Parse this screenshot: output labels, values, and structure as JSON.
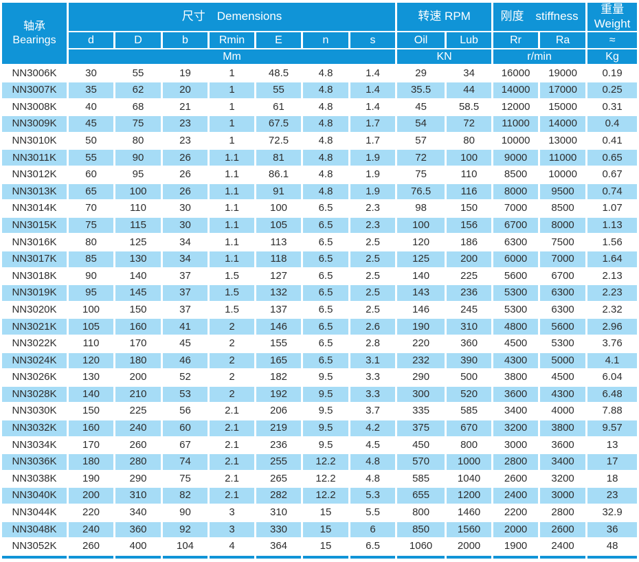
{
  "table": {
    "title_semantic": "bearings-specification-table",
    "header": {
      "bearings": "轴承\nBearings",
      "dimensions": "尺寸　Demensions",
      "rpm": "转速 RPM",
      "stiffness": "刚度　stiffness",
      "weight": "重量\nWeight",
      "sub": {
        "d": "d",
        "D": "D",
        "b": "b",
        "Rmin": "Rmin",
        "E": "E",
        "n": "n",
        "s": "s",
        "oil": "Oil",
        "lub": "Lub",
        "Rr": "Rr",
        "Ra": "Ra",
        "approx": "≈"
      },
      "units": {
        "mm": "Mm",
        "kn": "KN",
        "rmin": "r/min",
        "kg": "Kg"
      }
    },
    "column_keys": [
      "bearing",
      "d",
      "D",
      "b",
      "Rmin",
      "E",
      "n",
      "s",
      "oil",
      "lub",
      "Rr",
      "Ra",
      "weight"
    ],
    "rows": [
      [
        "NN3006K",
        "30",
        "55",
        "19",
        "1",
        "48.5",
        "4.8",
        "1.4",
        "29",
        "34",
        "16000",
        "19000",
        "0.19"
      ],
      [
        "NN3007K",
        "35",
        "62",
        "20",
        "1",
        "55",
        "4.8",
        "1.4",
        "35.5",
        "44",
        "14000",
        "17000",
        "0.25"
      ],
      [
        "NN3008K",
        "40",
        "68",
        "21",
        "1",
        "61",
        "4.8",
        "1.4",
        "45",
        "58.5",
        "12000",
        "15000",
        "0.31"
      ],
      [
        "NN3009K",
        "45",
        "75",
        "23",
        "1",
        "67.5",
        "4.8",
        "1.7",
        "54",
        "72",
        "11000",
        "14000",
        "0.4"
      ],
      [
        "NN3010K",
        "50",
        "80",
        "23",
        "1",
        "72.5",
        "4.8",
        "1.7",
        "57",
        "80",
        "10000",
        "13000",
        "0.41"
      ],
      [
        "NN3011K",
        "55",
        "90",
        "26",
        "1.1",
        "81",
        "4.8",
        "1.9",
        "72",
        "100",
        "9000",
        "11000",
        "0.65"
      ],
      [
        "NN3012K",
        "60",
        "95",
        "26",
        "1.1",
        "86.1",
        "4.8",
        "1.9",
        "75",
        "110",
        "8500",
        "10000",
        "0.67"
      ],
      [
        "NN3013K",
        "65",
        "100",
        "26",
        "1.1",
        "91",
        "4.8",
        "1.9",
        "76.5",
        "116",
        "8000",
        "9500",
        "0.74"
      ],
      [
        "NN3014K",
        "70",
        "110",
        "30",
        "1.1",
        "100",
        "6.5",
        "2.3",
        "98",
        "150",
        "7000",
        "8500",
        "1.07"
      ],
      [
        "NN3015K",
        "75",
        "115",
        "30",
        "1.1",
        "105",
        "6.5",
        "2.3",
        "100",
        "156",
        "6700",
        "8000",
        "1.13"
      ],
      [
        "NN3016K",
        "80",
        "125",
        "34",
        "1.1",
        "113",
        "6.5",
        "2.5",
        "120",
        "186",
        "6300",
        "7500",
        "1.56"
      ],
      [
        "NN3017K",
        "85",
        "130",
        "34",
        "1.1",
        "118",
        "6.5",
        "2.5",
        "125",
        "200",
        "6000",
        "7000",
        "1.64"
      ],
      [
        "NN3018K",
        "90",
        "140",
        "37",
        "1.5",
        "127",
        "6.5",
        "2.5",
        "140",
        "225",
        "5600",
        "6700",
        "2.13"
      ],
      [
        "NN3019K",
        "95",
        "145",
        "37",
        "1.5",
        "132",
        "6.5",
        "2.5",
        "143",
        "236",
        "5300",
        "6300",
        "2.23"
      ],
      [
        "NN3020K",
        "100",
        "150",
        "37",
        "1.5",
        "137",
        "6.5",
        "2.5",
        "146",
        "245",
        "5300",
        "6300",
        "2.32"
      ],
      [
        "NN3021K",
        "105",
        "160",
        "41",
        "2",
        "146",
        "6.5",
        "2.6",
        "190",
        "310",
        "4800",
        "5600",
        "2.96"
      ],
      [
        "NN3022K",
        "110",
        "170",
        "45",
        "2",
        "155",
        "6.5",
        "2.8",
        "220",
        "360",
        "4500",
        "5300",
        "3.76"
      ],
      [
        "NN3024K",
        "120",
        "180",
        "46",
        "2",
        "165",
        "6.5",
        "3.1",
        "232",
        "390",
        "4300",
        "5000",
        "4.1"
      ],
      [
        "NN3026K",
        "130",
        "200",
        "52",
        "2",
        "182",
        "9.5",
        "3.3",
        "290",
        "500",
        "3800",
        "4500",
        "6.04"
      ],
      [
        "NN3028K",
        "140",
        "210",
        "53",
        "2",
        "192",
        "9.5",
        "3.3",
        "300",
        "520",
        "3600",
        "4300",
        "6.48"
      ],
      [
        "NN3030K",
        "150",
        "225",
        "56",
        "2.1",
        "206",
        "9.5",
        "3.7",
        "335",
        "585",
        "3400",
        "4000",
        "7.88"
      ],
      [
        "NN3032K",
        "160",
        "240",
        "60",
        "2.1",
        "219",
        "9.5",
        "4.2",
        "375",
        "670",
        "3200",
        "3800",
        "9.57"
      ],
      [
        "NN3034K",
        "170",
        "260",
        "67",
        "2.1",
        "236",
        "9.5",
        "4.5",
        "450",
        "800",
        "3000",
        "3600",
        "13"
      ],
      [
        "NN3036K",
        "180",
        "280",
        "74",
        "2.1",
        "255",
        "12.2",
        "4.8",
        "570",
        "1000",
        "2800",
        "3400",
        "17"
      ],
      [
        "NN3038K",
        "190",
        "290",
        "75",
        "2.1",
        "265",
        "12.2",
        "4.8",
        "585",
        "1040",
        "2600",
        "3200",
        "18"
      ],
      [
        "NN3040K",
        "200",
        "310",
        "82",
        "2.1",
        "282",
        "12.2",
        "5.3",
        "655",
        "1200",
        "2400",
        "3000",
        "23"
      ],
      [
        "NN3044K",
        "220",
        "340",
        "90",
        "3",
        "310",
        "15",
        "5.5",
        "800",
        "1460",
        "2200",
        "2800",
        "32.9"
      ],
      [
        "NN3048K",
        "240",
        "360",
        "92",
        "3",
        "330",
        "15",
        "6",
        "850",
        "1560",
        "2000",
        "2600",
        "36"
      ],
      [
        "NN3052K",
        "260",
        "400",
        "104",
        "4",
        "364",
        "15",
        "6.5",
        "1060",
        "2000",
        "1900",
        "2400",
        "48"
      ]
    ]
  },
  "colors": {
    "header_bg": "#1094d7",
    "row_alt_bg": "#a6dcf6",
    "row_bg": "#ffffff",
    "header_text": "#ffffff",
    "cell_text": "#2d2d2d"
  }
}
